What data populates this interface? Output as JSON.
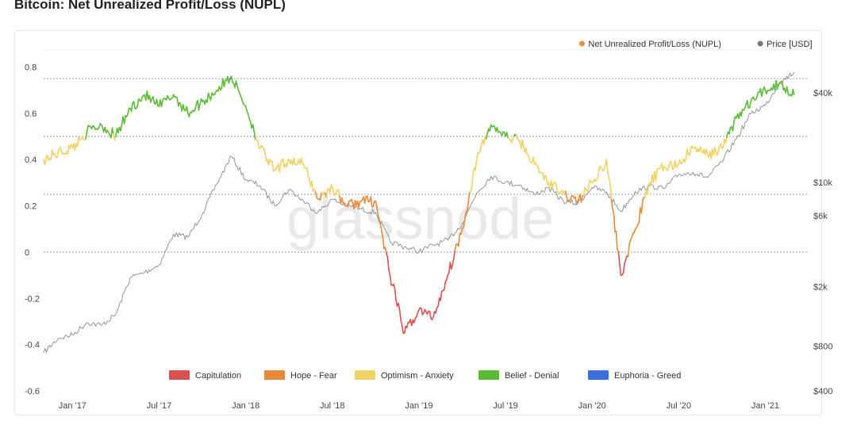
{
  "page": {
    "title": "Bitcoin: Net Unrealized Profit/Loss (NUPL)"
  },
  "watermark": "glassnode",
  "legend_top": [
    {
      "label": "Net Unrealized Profit/Loss (NUPL)",
      "color": "#e8903e"
    },
    {
      "label": "Price [USD]",
      "color": "#777777"
    }
  ],
  "chart_data": {
    "type": "line",
    "title": "Bitcoin: Net Unrealized Profit/Loss (NUPL)",
    "x_ticks": [
      "Jan '17",
      "Jul '17",
      "Jan '18",
      "Jul '18",
      "Jan '19",
      "Jul '19",
      "Jan '20",
      "Jul '20",
      "Jan '21"
    ],
    "x_range": [
      "2016-11",
      "2021-04"
    ],
    "y_left": {
      "ticks": [
        "-0.6",
        "-0.4",
        "-0.2",
        "0",
        "0.2",
        "0.4",
        "0.6",
        "0.8"
      ],
      "range": [
        -0.6,
        0.86
      ]
    },
    "y_right": {
      "ticks": [
        "$400",
        "$800",
        "$2k",
        "$6k",
        "$10k",
        "$40k"
      ],
      "scale": "log"
    },
    "zone_thresholds": [
      0,
      0.25,
      0.5,
      0.75
    ],
    "zones": [
      {
        "label": "Capitulation",
        "min": -1,
        "max": 0,
        "color": "#d95050"
      },
      {
        "label": "Hope - Fear",
        "min": 0,
        "max": 0.25,
        "color": "#e8893a"
      },
      {
        "label": "Optimism - Anxiety",
        "min": 0.25,
        "max": 0.5,
        "color": "#f2d264"
      },
      {
        "label": "Belief - Denial",
        "min": 0.5,
        "max": 0.75,
        "color": "#5cbb35"
      },
      {
        "label": "Euphoria - Greed",
        "min": 0.75,
        "max": 1,
        "color": "#3d6ee0"
      }
    ],
    "nupl_series": {
      "name": "Net Unrealized Profit/Loss (NUPL)",
      "points": [
        [
          "2016-11",
          0.4
        ],
        [
          "2016-12",
          0.43
        ],
        [
          "2017-01",
          0.45
        ],
        [
          "2017-02",
          0.52
        ],
        [
          "2017-03",
          0.55
        ],
        [
          "2017-04",
          0.5
        ],
        [
          "2017-05",
          0.62
        ],
        [
          "2017-06",
          0.68
        ],
        [
          "2017-07",
          0.63
        ],
        [
          "2017-08",
          0.68
        ],
        [
          "2017-09",
          0.6
        ],
        [
          "2017-10",
          0.65
        ],
        [
          "2017-11",
          0.7
        ],
        [
          "2017-12",
          0.76
        ],
        [
          "2018-01",
          0.63
        ],
        [
          "2018-02",
          0.45
        ],
        [
          "2018-03",
          0.35
        ],
        [
          "2018-04",
          0.4
        ],
        [
          "2018-05",
          0.38
        ],
        [
          "2018-06",
          0.23
        ],
        [
          "2018-07",
          0.28
        ],
        [
          "2018-08",
          0.2
        ],
        [
          "2018-09",
          0.22
        ],
        [
          "2018-10",
          0.22
        ],
        [
          "2018-11",
          -0.1
        ],
        [
          "2018-12",
          -0.35
        ],
        [
          "2019-01",
          -0.25
        ],
        [
          "2019-02",
          -0.28
        ],
        [
          "2019-03",
          -0.1
        ],
        [
          "2019-04",
          0.1
        ],
        [
          "2019-05",
          0.4
        ],
        [
          "2019-06",
          0.55
        ],
        [
          "2019-07",
          0.5
        ],
        [
          "2019-08",
          0.48
        ],
        [
          "2019-09",
          0.38
        ],
        [
          "2019-10",
          0.3
        ],
        [
          "2019-11",
          0.25
        ],
        [
          "2019-12",
          0.22
        ],
        [
          "2020-01",
          0.3
        ],
        [
          "2020-02",
          0.4
        ],
        [
          "2020-03",
          -0.1
        ],
        [
          "2020-04",
          0.1
        ],
        [
          "2020-05",
          0.3
        ],
        [
          "2020-06",
          0.37
        ],
        [
          "2020-07",
          0.38
        ],
        [
          "2020-08",
          0.45
        ],
        [
          "2020-09",
          0.42
        ],
        [
          "2020-10",
          0.45
        ],
        [
          "2020-11",
          0.58
        ],
        [
          "2020-12",
          0.65
        ],
        [
          "2021-01",
          0.7
        ],
        [
          "2021-02",
          0.73
        ],
        [
          "2021-03",
          0.68
        ]
      ]
    },
    "price_series": {
      "name": "Price [USD]",
      "points": [
        [
          "2016-11",
          720
        ],
        [
          "2016-12",
          900
        ],
        [
          "2017-01",
          950
        ],
        [
          "2017-02",
          1150
        ],
        [
          "2017-03",
          1100
        ],
        [
          "2017-04",
          1300
        ],
        [
          "2017-05",
          2300
        ],
        [
          "2017-06",
          2500
        ],
        [
          "2017-07",
          2800
        ],
        [
          "2017-08",
          4500
        ],
        [
          "2017-09",
          4300
        ],
        [
          "2017-10",
          6200
        ],
        [
          "2017-11",
          9800
        ],
        [
          "2017-12",
          15000
        ],
        [
          "2018-01",
          10500
        ],
        [
          "2018-02",
          9500
        ],
        [
          "2018-03",
          7000
        ],
        [
          "2018-04",
          9000
        ],
        [
          "2018-05",
          7500
        ],
        [
          "2018-06",
          6300
        ],
        [
          "2018-07",
          7700
        ],
        [
          "2018-08",
          7000
        ],
        [
          "2018-09",
          6600
        ],
        [
          "2018-10",
          6300
        ],
        [
          "2018-11",
          4000
        ],
        [
          "2018-12",
          3700
        ],
        [
          "2019-01",
          3450
        ],
        [
          "2019-02",
          3800
        ],
        [
          "2019-03",
          4100
        ],
        [
          "2019-04",
          5300
        ],
        [
          "2019-05",
          8500
        ],
        [
          "2019-06",
          11000
        ],
        [
          "2019-07",
          10000
        ],
        [
          "2019-08",
          9600
        ],
        [
          "2019-09",
          8300
        ],
        [
          "2019-10",
          9200
        ],
        [
          "2019-11",
          7500
        ],
        [
          "2019-12",
          7200
        ],
        [
          "2020-01",
          9300
        ],
        [
          "2020-02",
          8600
        ],
        [
          "2020-03",
          6400
        ],
        [
          "2020-04",
          8700
        ],
        [
          "2020-05",
          9500
        ],
        [
          "2020-06",
          9100
        ],
        [
          "2020-07",
          11300
        ],
        [
          "2020-08",
          11700
        ],
        [
          "2020-09",
          10800
        ],
        [
          "2020-10",
          13800
        ],
        [
          "2020-11",
          19700
        ],
        [
          "2020-12",
          29000
        ],
        [
          "2021-01",
          33000
        ],
        [
          "2021-02",
          47000
        ],
        [
          "2021-03",
          55000
        ]
      ]
    }
  }
}
